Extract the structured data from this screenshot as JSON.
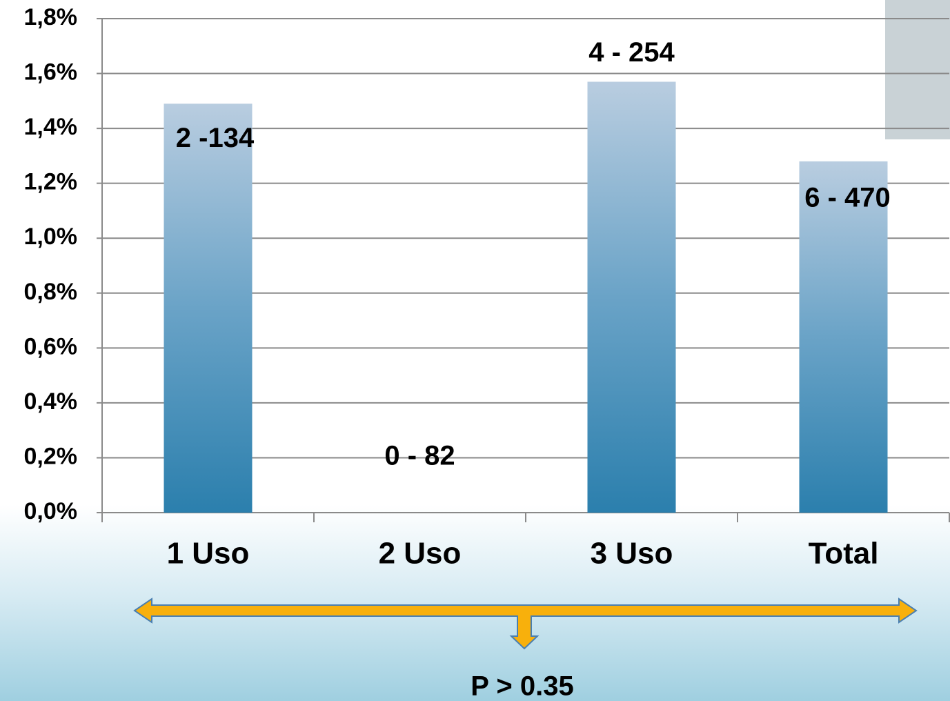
{
  "chart_data": {
    "type": "bar",
    "categories": [
      "1 Uso",
      "2 Uso",
      "3 Uso",
      "Total"
    ],
    "values": [
      1.49,
      0,
      1.57,
      1.28
    ],
    "annotations": [
      "2 -134",
      "0 - 82",
      "4 - 254",
      "6 - 470"
    ],
    "note": "P > 0.35",
    "color": "#2b7fad",
    "ylim": [
      0,
      1.8
    ],
    "yticks": [
      {
        "value": 0,
        "label": "0,0%"
      },
      {
        "value": 0.2,
        "label": "0,2%"
      },
      {
        "value": 0.4,
        "label": "0,4%"
      },
      {
        "value": 0.6,
        "label": "0,6%"
      },
      {
        "value": 0.8,
        "label": "0,8%"
      },
      {
        "value": 1.0,
        "label": "1,0%"
      },
      {
        "value": 1.2,
        "label": "1,2%"
      },
      {
        "value": 1.4,
        "label": "1,4%"
      },
      {
        "value": 1.6,
        "label": "1,6%"
      },
      {
        "value": 1.8,
        "label": "1,8%"
      }
    ],
    "grid": true
  }
}
